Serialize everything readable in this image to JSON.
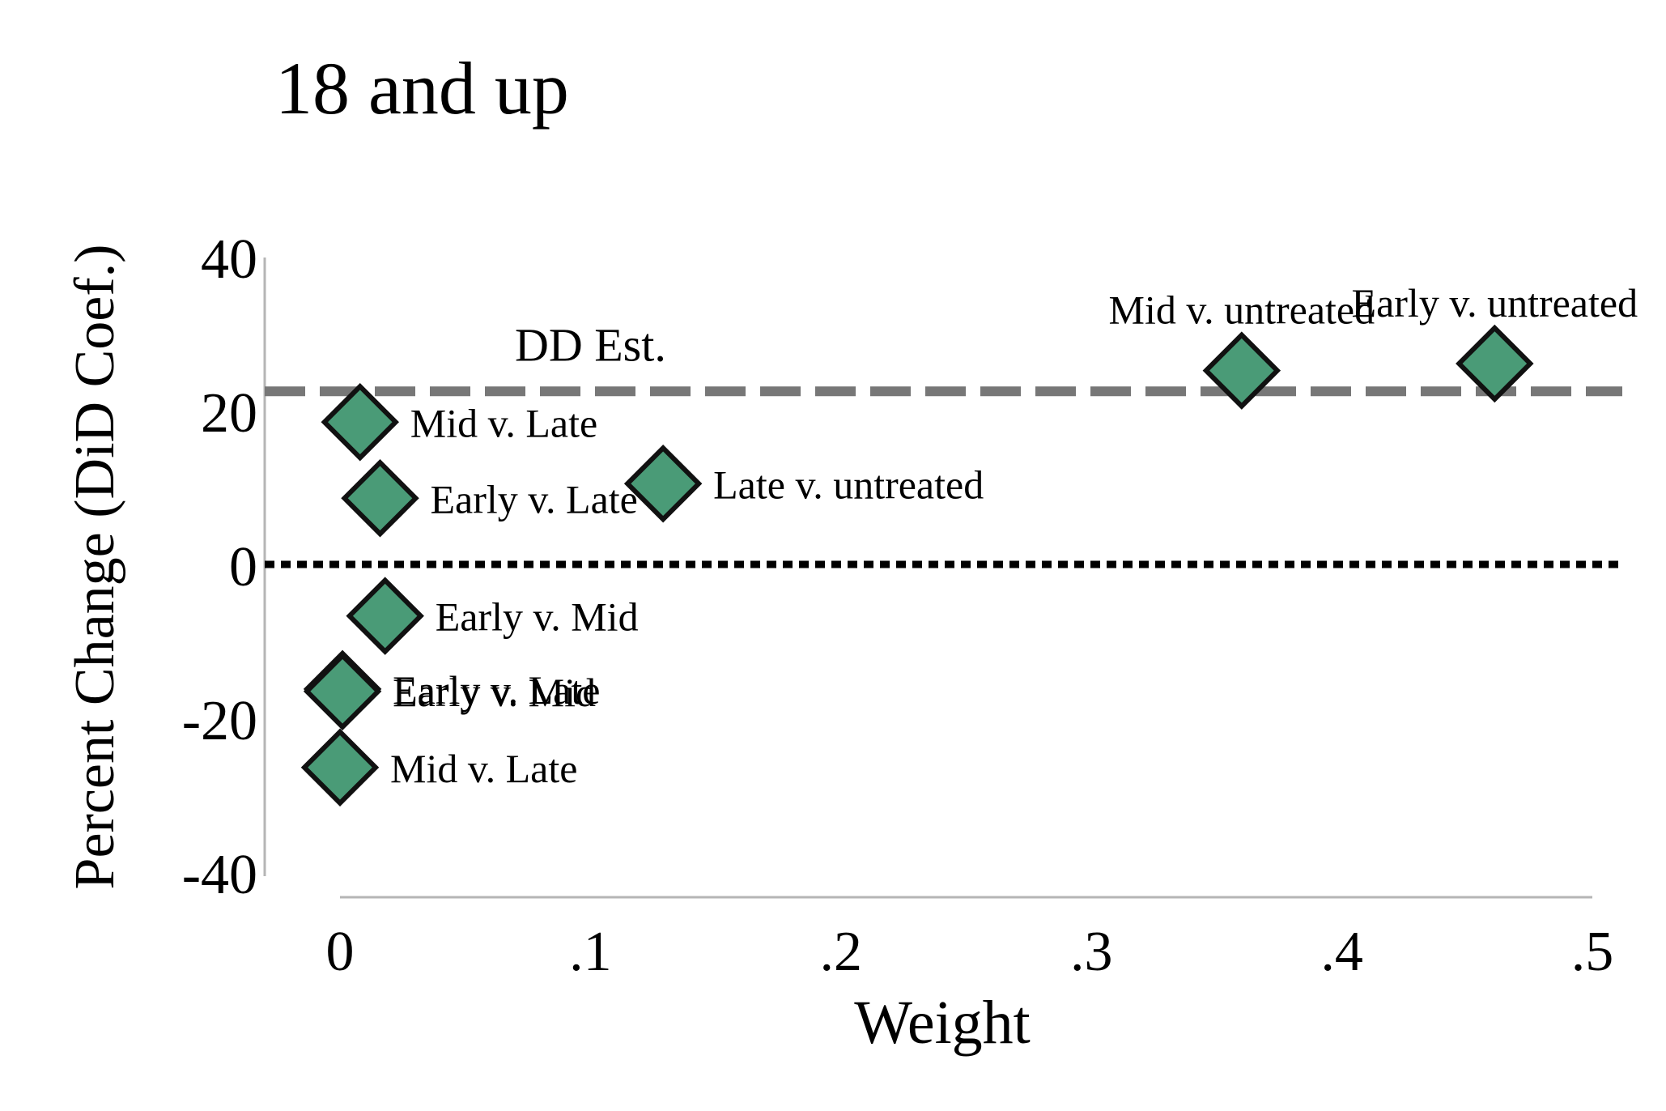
{
  "chart_data": {
    "type": "scatter",
    "title": "18 and up",
    "xlabel": "Weight",
    "ylabel": "Percent Change (DiD Coef.)",
    "xlim": [
      -0.03,
      0.52
    ],
    "ylim": [
      -40,
      40
    ],
    "x_ticks": [
      {
        "value": 0,
        "label": "0"
      },
      {
        "value": 0.1,
        "label": ".1"
      },
      {
        "value": 0.2,
        "label": ".2"
      },
      {
        "value": 0.3,
        "label": ".3"
      },
      {
        "value": 0.4,
        "label": ".4"
      },
      {
        "value": 0.5,
        "label": ".5"
      }
    ],
    "y_ticks": [
      {
        "value": 40,
        "label": "40"
      },
      {
        "value": 20,
        "label": "20"
      },
      {
        "value": 0,
        "label": "0"
      },
      {
        "value": -20,
        "label": "-20"
      },
      {
        "value": -40,
        "label": "-40"
      }
    ],
    "reference_lines": [
      {
        "name": "dd-estimate",
        "y": 22.5,
        "label": "DD Est.",
        "label_x": 0.1,
        "color": "#777777",
        "style": "dashed"
      },
      {
        "name": "zero",
        "y": 0,
        "label": "",
        "color": "#000000",
        "style": "dotted"
      }
    ],
    "marker_color": "#4a9b77",
    "marker_edge": "#111111",
    "points": [
      {
        "label": "Mid v. Late",
        "x": 0.008,
        "y": 18.5,
        "label_pos": "right"
      },
      {
        "label": "Early v. Late",
        "x": 0.016,
        "y": 8.6,
        "label_pos": "right"
      },
      {
        "label": "Late v. untreated",
        "x": 0.129,
        "y": 10.5,
        "label_pos": "right"
      },
      {
        "label": "Mid v. untreated",
        "x": 0.36,
        "y": 25.2,
        "label_pos": "above"
      },
      {
        "label": "Early v. untreated",
        "x": 0.461,
        "y": 26.1,
        "label_pos": "above"
      },
      {
        "label": "Early v. Mid",
        "x": 0.018,
        "y": -6.7,
        "label_pos": "right"
      },
      {
        "label": "Early v. Late",
        "x": 0.001,
        "y": -16.2,
        "label_pos": "right"
      },
      {
        "label": "Early v. Mid",
        "x": 0.001,
        "y": -16.5,
        "label_pos": "right"
      },
      {
        "label": "Mid v. Late",
        "x": 0.0,
        "y": -26.4,
        "label_pos": "right"
      }
    ]
  }
}
